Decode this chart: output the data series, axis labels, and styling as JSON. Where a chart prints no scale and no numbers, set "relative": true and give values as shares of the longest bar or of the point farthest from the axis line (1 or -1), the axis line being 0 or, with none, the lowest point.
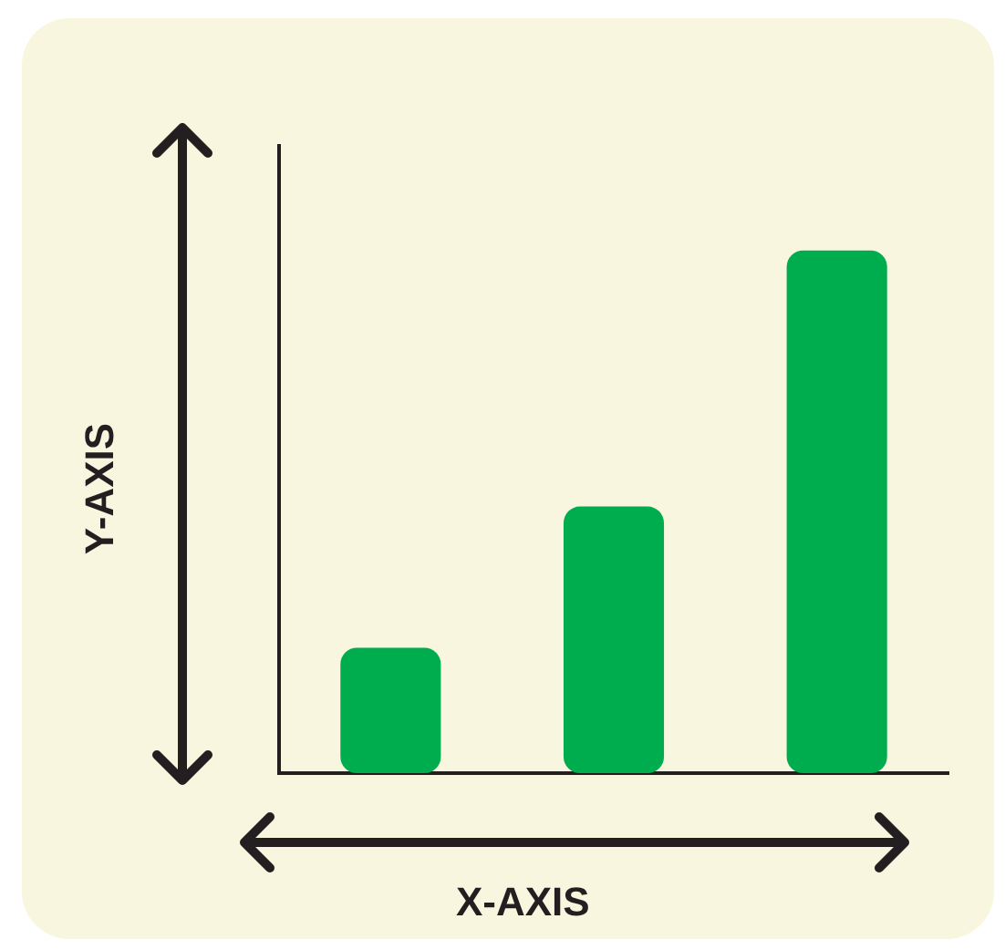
{
  "chart_data": {
    "type": "bar",
    "relative": true,
    "categories": [
      null,
      null,
      null
    ],
    "values": [
      0.24,
      0.51,
      1
    ],
    "color": "#00ad4e",
    "xlabel": "X-AXIS",
    "ylabel": "Y-AXIS",
    "grid": false,
    "legend": false
  }
}
